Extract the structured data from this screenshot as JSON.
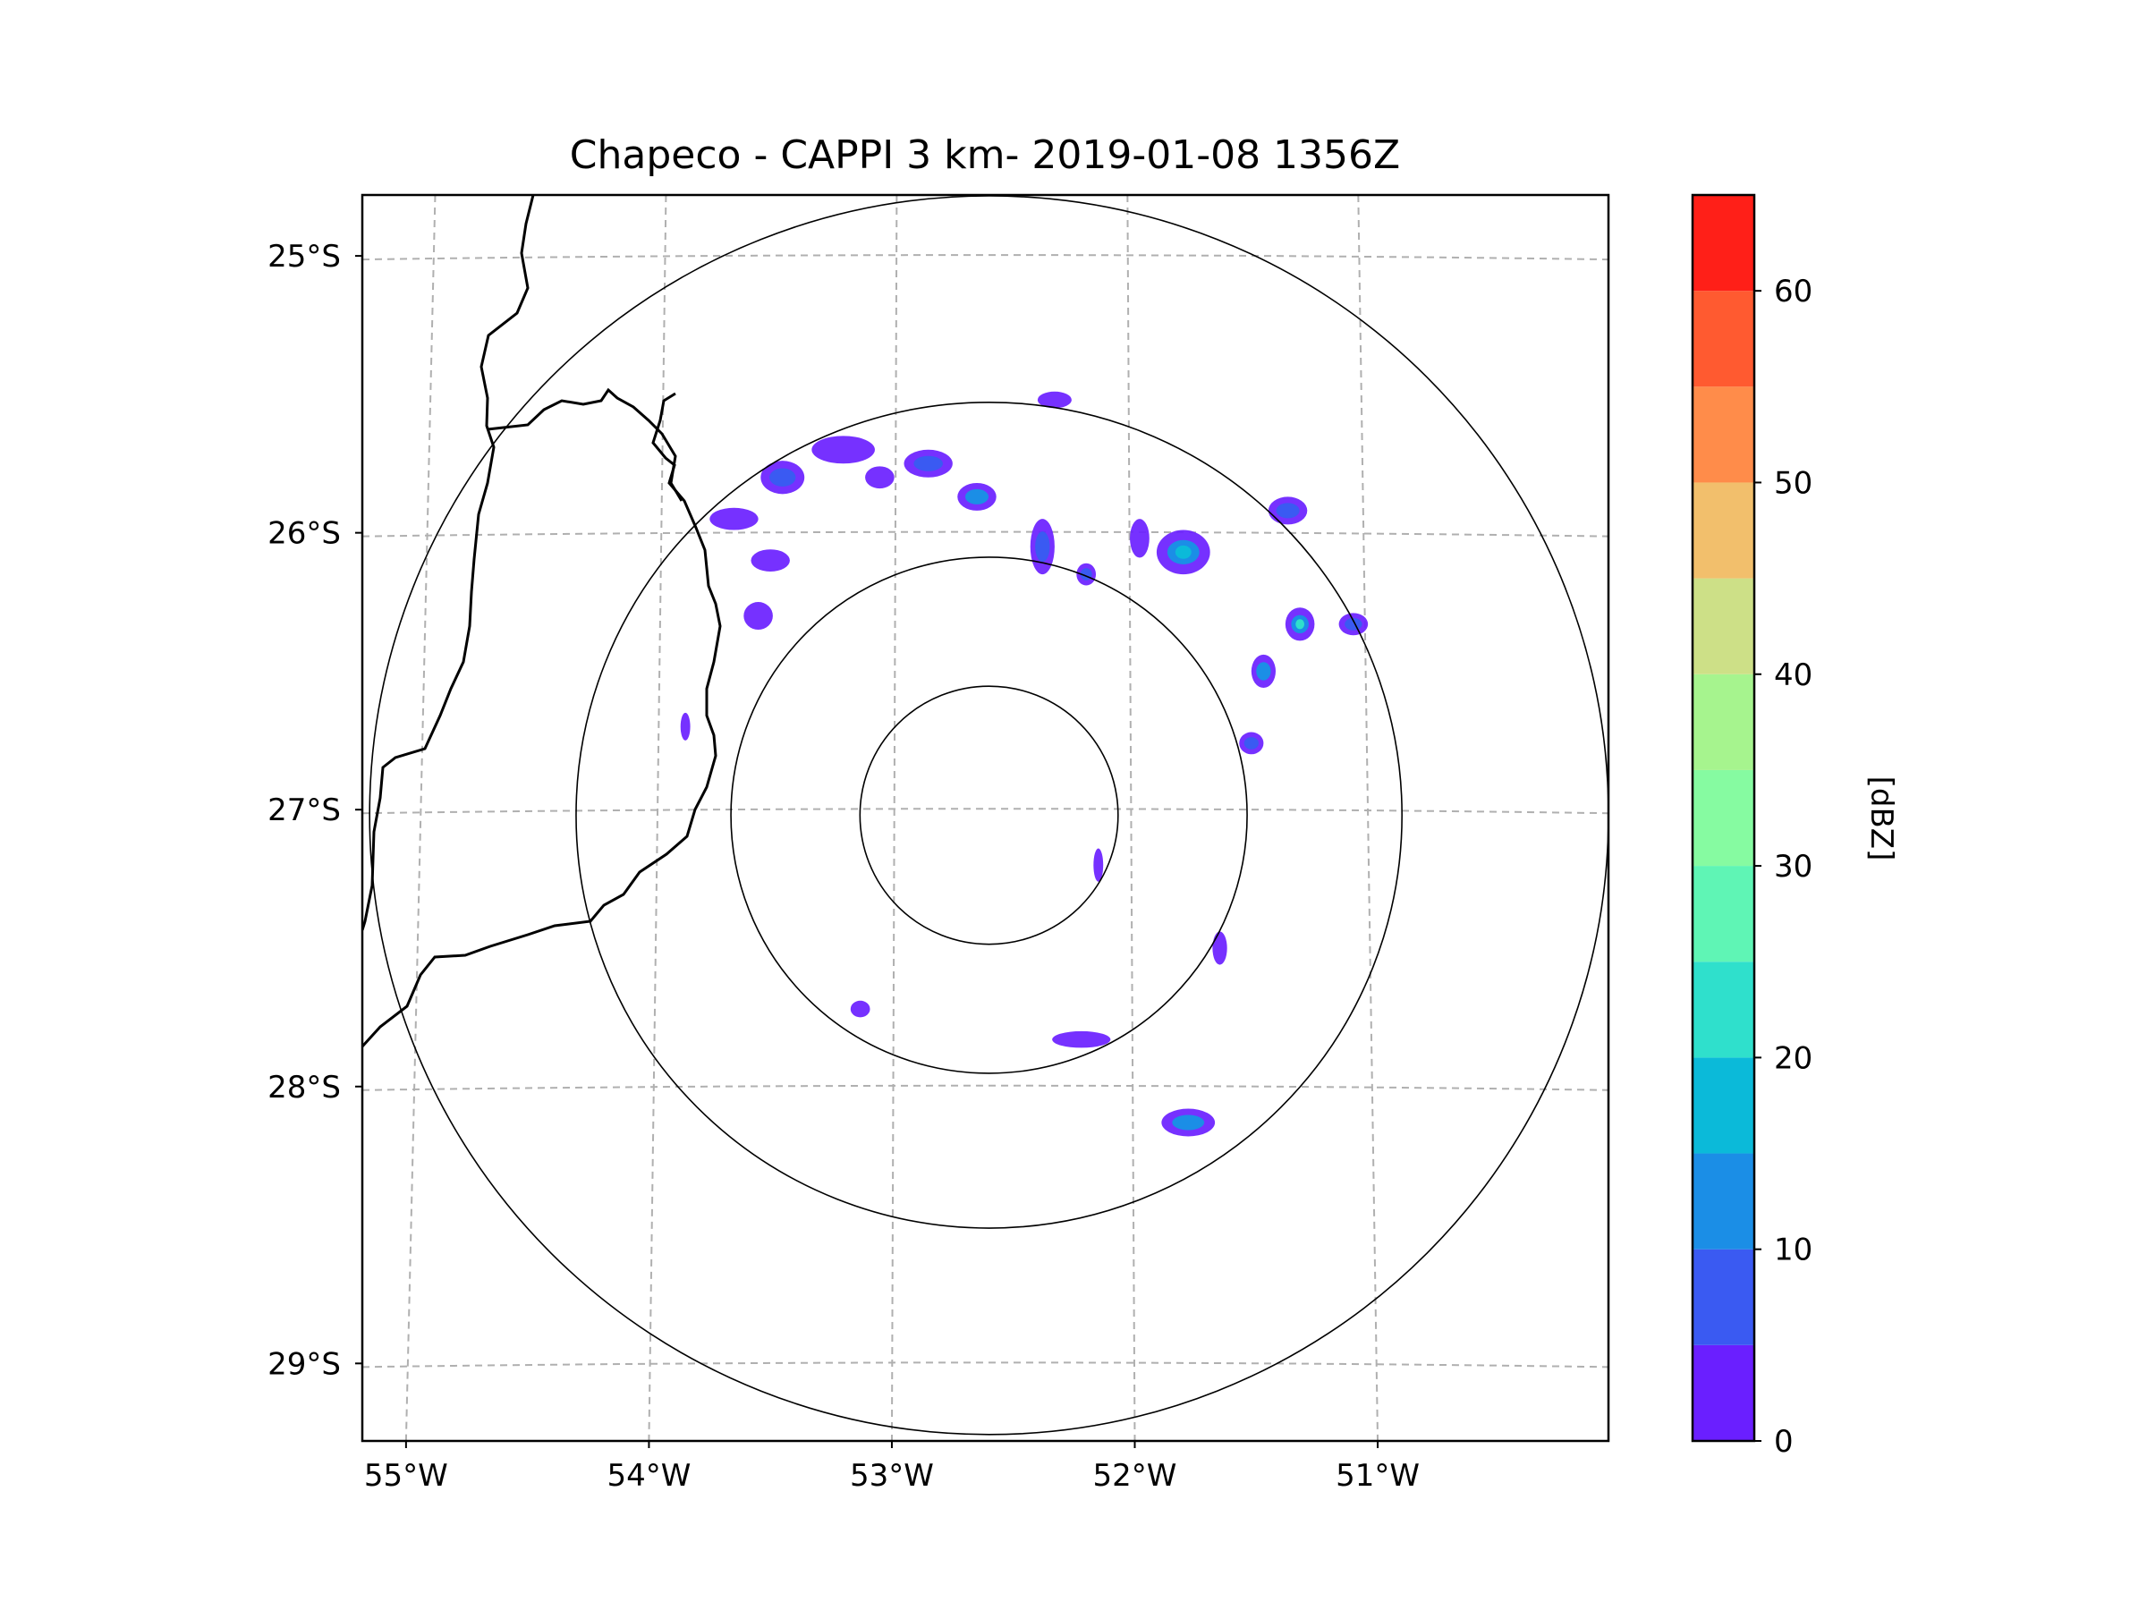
{
  "chart_data": {
    "type": "radar-map",
    "title": "Chapeco - CAPPI 3 km- 2019-01-08 1356Z",
    "xlabel": "",
    "ylabel": "",
    "x_ticks": [
      "55°W",
      "54°W",
      "53°W",
      "52°W",
      "51°W"
    ],
    "y_ticks": [
      "25°S",
      "26°S",
      "27°S",
      "28°S",
      "29°S"
    ],
    "x_tick_values": [
      -55,
      -54,
      -53,
      -52,
      -51
    ],
    "y_tick_values": [
      -25,
      -26,
      -27,
      -28,
      -29
    ],
    "xlim": [
      -55.18,
      -50.05
    ],
    "ylim": [
      -29.28,
      -24.78
    ],
    "grid": true,
    "radar_center": {
      "lon": -52.6,
      "lat": -27.02
    },
    "range_rings_deg": [
      0.5,
      1.0,
      1.6,
      2.4
    ],
    "colorbar": {
      "label": "[dBZ]",
      "ticks": [
        0,
        10,
        20,
        30,
        40,
        50,
        60
      ],
      "levels": [
        0,
        5,
        10,
        15,
        20,
        25,
        30,
        35,
        40,
        45,
        50,
        55,
        60,
        65
      ],
      "colors": [
        "#6a1fff",
        "#3a5af2",
        "#1b8ee6",
        "#0bbad9",
        "#2fe0cc",
        "#5ff5b5",
        "#86fba1",
        "#a6f48e",
        "#cde087",
        "#f2bf6c",
        "#ff8c4a",
        "#ff5a30",
        "#ff1f18"
      ]
    },
    "echoes": [
      {
        "lon": -53.2,
        "lat": -25.7,
        "rx": 0.13,
        "ry": 0.05,
        "dbz": 3
      },
      {
        "lon": -53.45,
        "lat": -25.8,
        "rx": 0.09,
        "ry": 0.06,
        "dbz": 6
      },
      {
        "lon": -53.65,
        "lat": -25.95,
        "rx": 0.1,
        "ry": 0.04,
        "dbz": 3
      },
      {
        "lon": -53.5,
        "lat": -26.1,
        "rx": 0.08,
        "ry": 0.04,
        "dbz": 3
      },
      {
        "lon": -53.55,
        "lat": -26.3,
        "rx": 0.06,
        "ry": 0.05,
        "dbz": 3
      },
      {
        "lon": -53.05,
        "lat": -25.8,
        "rx": 0.06,
        "ry": 0.04,
        "dbz": 3
      },
      {
        "lon": -52.85,
        "lat": -25.75,
        "rx": 0.1,
        "ry": 0.05,
        "dbz": 7
      },
      {
        "lon": -52.65,
        "lat": -25.87,
        "rx": 0.08,
        "ry": 0.05,
        "dbz": 12
      },
      {
        "lon": -52.38,
        "lat": -26.05,
        "rx": 0.05,
        "ry": 0.1,
        "dbz": 8
      },
      {
        "lon": -52.2,
        "lat": -26.15,
        "rx": 0.04,
        "ry": 0.04,
        "dbz": 5
      },
      {
        "lon": -52.33,
        "lat": -25.52,
        "rx": 0.07,
        "ry": 0.03,
        "dbz": 4
      },
      {
        "lon": -51.8,
        "lat": -26.07,
        "rx": 0.11,
        "ry": 0.08,
        "dbz": 18
      },
      {
        "lon": -51.98,
        "lat": -26.02,
        "rx": 0.04,
        "ry": 0.07,
        "dbz": 3
      },
      {
        "lon": -51.37,
        "lat": -25.92,
        "rx": 0.08,
        "ry": 0.05,
        "dbz": 9
      },
      {
        "lon": -51.32,
        "lat": -26.33,
        "rx": 0.06,
        "ry": 0.06,
        "dbz": 22
      },
      {
        "lon": -51.47,
        "lat": -26.5,
        "rx": 0.05,
        "ry": 0.06,
        "dbz": 10
      },
      {
        "lon": -51.1,
        "lat": -26.33,
        "rx": 0.06,
        "ry": 0.04,
        "dbz": 6
      },
      {
        "lon": -51.52,
        "lat": -26.76,
        "rx": 0.05,
        "ry": 0.04,
        "dbz": 7
      },
      {
        "lon": -51.78,
        "lat": -28.13,
        "rx": 0.11,
        "ry": 0.05,
        "dbz": 14
      },
      {
        "lon": -52.22,
        "lat": -27.83,
        "rx": 0.12,
        "ry": 0.03,
        "dbz": 4
      },
      {
        "lon": -53.13,
        "lat": -27.72,
        "rx": 0.04,
        "ry": 0.03,
        "dbz": 3
      },
      {
        "lon": -53.85,
        "lat": -26.7,
        "rx": 0.02,
        "ry": 0.05,
        "dbz": 2
      },
      {
        "lon": -52.15,
        "lat": -27.2,
        "rx": 0.02,
        "ry": 0.06,
        "dbz": 2
      },
      {
        "lon": -51.65,
        "lat": -27.5,
        "rx": 0.03,
        "ry": 0.06,
        "dbz": 2
      }
    ]
  }
}
